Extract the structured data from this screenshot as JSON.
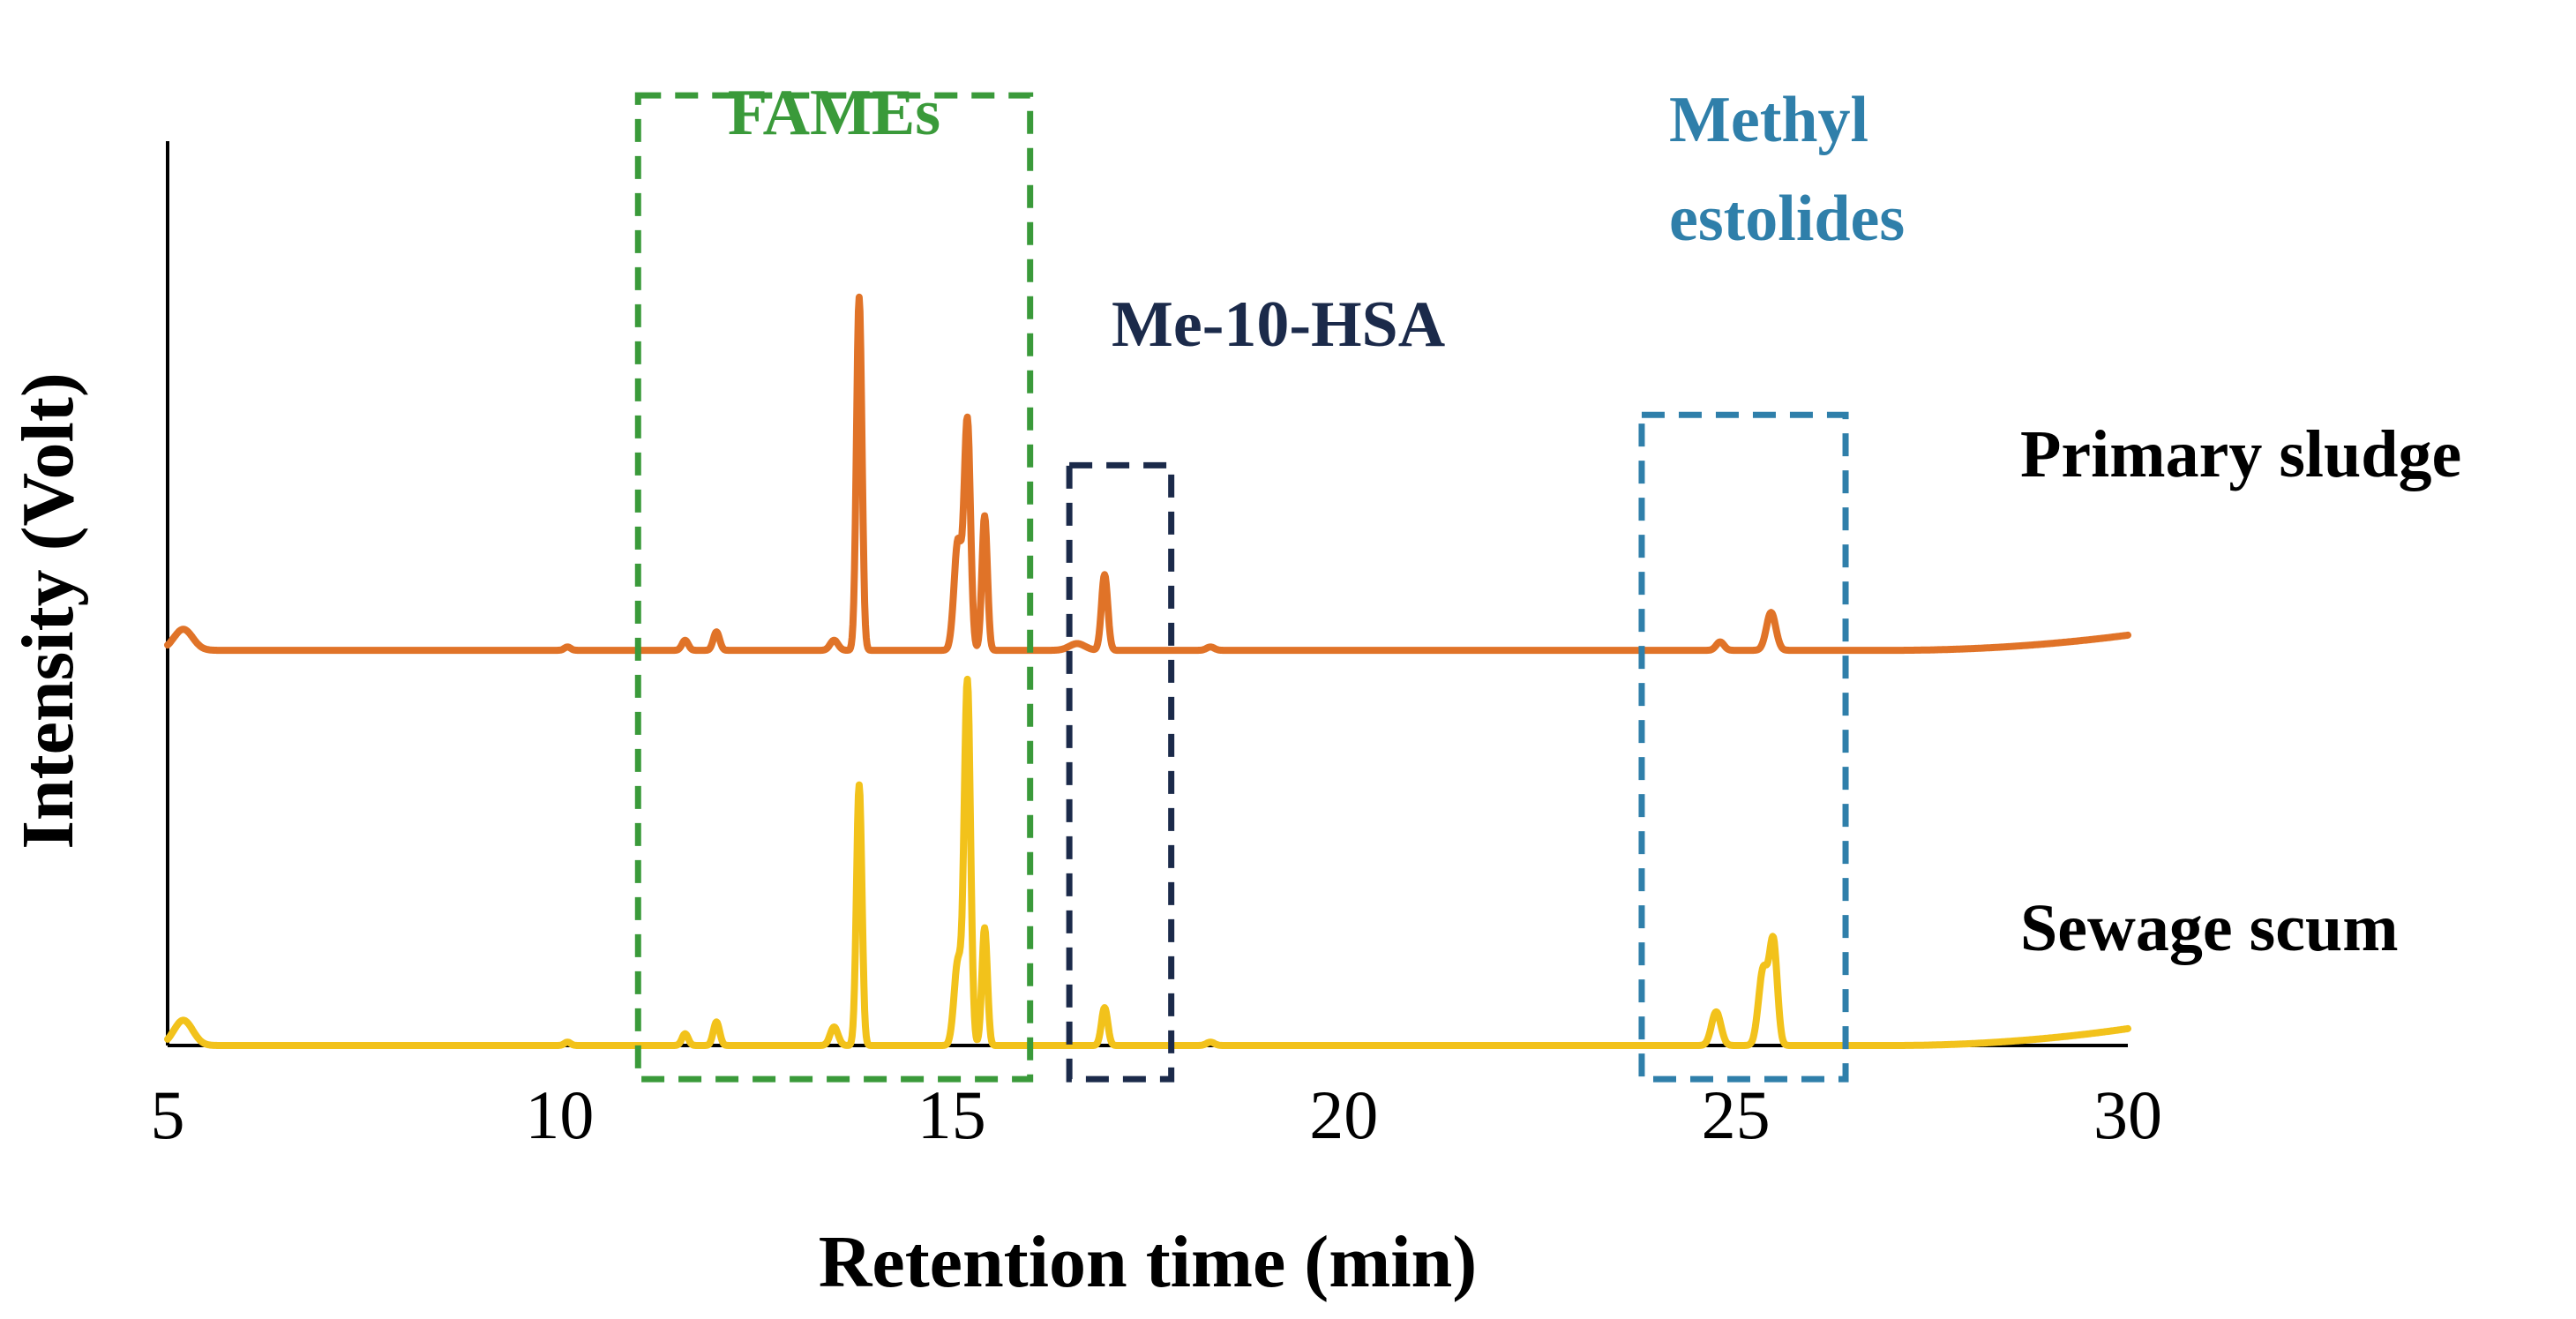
{
  "chart_data": {
    "type": "line",
    "xlabel": "Retention time (min)",
    "ylabel": "Intensity (Volt)",
    "xlim": [
      5,
      30
    ],
    "x_ticks": [
      "5",
      "10",
      "15",
      "20",
      "25",
      "30"
    ],
    "ylim": [
      0,
      1
    ],
    "grid": false,
    "series": [
      {
        "name": "Primary sludge",
        "color": "#E07328",
        "baseline": 0.47,
        "peaks": [
          {
            "x": 5.2,
            "h": 0.025,
            "w": 0.12
          },
          {
            "x": 10.1,
            "h": 0.004,
            "w": 0.04
          },
          {
            "x": 11.6,
            "h": 0.012,
            "w": 0.04
          },
          {
            "x": 12.0,
            "h": 0.022,
            "w": 0.04
          },
          {
            "x": 13.5,
            "h": 0.012,
            "w": 0.05
          },
          {
            "x": 13.82,
            "h": 0.42,
            "w": 0.035
          },
          {
            "x": 15.08,
            "h": 0.13,
            "w": 0.05
          },
          {
            "x": 15.2,
            "h": 0.27,
            "w": 0.04
          },
          {
            "x": 15.42,
            "h": 0.16,
            "w": 0.035
          },
          {
            "x": 16.6,
            "h": 0.008,
            "w": 0.1
          },
          {
            "x": 16.95,
            "h": 0.09,
            "w": 0.04
          },
          {
            "x": 18.3,
            "h": 0.004,
            "w": 0.05
          },
          {
            "x": 24.8,
            "h": 0.01,
            "w": 0.05
          },
          {
            "x": 25.45,
            "h": 0.045,
            "w": 0.06
          }
        ],
        "drift_end": 0.018
      },
      {
        "name": "Sewage scum",
        "color": "#F2C21B",
        "baseline": 0.0,
        "peaks": [
          {
            "x": 5.2,
            "h": 0.03,
            "w": 0.12
          },
          {
            "x": 10.1,
            "h": 0.004,
            "w": 0.04
          },
          {
            "x": 11.6,
            "h": 0.014,
            "w": 0.04
          },
          {
            "x": 12.0,
            "h": 0.028,
            "w": 0.04
          },
          {
            "x": 13.5,
            "h": 0.022,
            "w": 0.05
          },
          {
            "x": 13.82,
            "h": 0.31,
            "w": 0.035
          },
          {
            "x": 15.08,
            "h": 0.1,
            "w": 0.05
          },
          {
            "x": 15.2,
            "h": 0.43,
            "w": 0.04
          },
          {
            "x": 15.42,
            "h": 0.14,
            "w": 0.035
          },
          {
            "x": 16.95,
            "h": 0.045,
            "w": 0.04
          },
          {
            "x": 18.3,
            "h": 0.004,
            "w": 0.05
          },
          {
            "x": 24.75,
            "h": 0.04,
            "w": 0.06
          },
          {
            "x": 25.35,
            "h": 0.09,
            "w": 0.06
          },
          {
            "x": 25.48,
            "h": 0.12,
            "w": 0.05
          }
        ],
        "drift_end": 0.02
      }
    ],
    "regions": [
      {
        "label": "FAMEs",
        "x0": 11.0,
        "x1": 16.0,
        "y0": -0.04,
        "y1": 1.13,
        "color": "#3A9A3A"
      },
      {
        "label": "Me-10-HSA",
        "x0": 16.5,
        "x1": 17.8,
        "y0": -0.04,
        "y1": 0.69,
        "color": "#1B2A4A"
      },
      {
        "label": "Methyl estolides",
        "x0": 23.8,
        "x1": 26.4,
        "y0": -0.04,
        "y1": 0.75,
        "color": "#2F7FAA"
      }
    ]
  }
}
